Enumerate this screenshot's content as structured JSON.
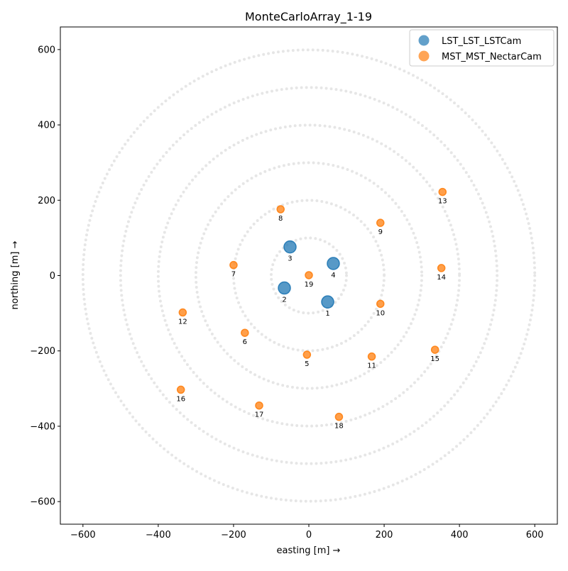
{
  "chart_data": {
    "type": "scatter",
    "title": "MonteCarloArray_1-19",
    "xlabel": "easting [m] →",
    "ylabel": "northing [m] →",
    "xlim": [
      -660,
      660
    ],
    "ylim": [
      -660,
      660
    ],
    "xticks": [
      -600,
      -400,
      -200,
      0,
      200,
      400,
      600
    ],
    "yticks": [
      -600,
      -400,
      -200,
      0,
      200,
      400,
      600
    ],
    "tick_labels": [
      "−600",
      "−400",
      "−200",
      "0",
      "200",
      "400",
      "600"
    ],
    "grid_circles_radius": [
      100,
      200,
      300,
      400,
      500,
      600
    ],
    "legend_position": "top-right",
    "colors": {
      "lst": "#1f77b4",
      "mst": "#ff7f0e",
      "grid": "#e6e6e6"
    },
    "series": [
      {
        "name": "LST_LST_LSTCam",
        "points": [
          {
            "id": "1",
            "x": 50,
            "y": -70
          },
          {
            "id": "2",
            "x": -65,
            "y": -33
          },
          {
            "id": "3",
            "x": -50,
            "y": 76
          },
          {
            "id": "4",
            "x": 65,
            "y": 32
          }
        ]
      },
      {
        "name": "MST_MST_NectarCam",
        "points": [
          {
            "id": "5",
            "x": -5,
            "y": -210
          },
          {
            "id": "6",
            "x": -170,
            "y": -152
          },
          {
            "id": "7",
            "x": -200,
            "y": 28
          },
          {
            "id": "8",
            "x": -75,
            "y": 176
          },
          {
            "id": "9",
            "x": 190,
            "y": 140
          },
          {
            "id": "10",
            "x": 190,
            "y": -75
          },
          {
            "id": "11",
            "x": 167,
            "y": -215
          },
          {
            "id": "12",
            "x": -335,
            "y": -98
          },
          {
            "id": "13",
            "x": 355,
            "y": 222
          },
          {
            "id": "14",
            "x": 352,
            "y": 20
          },
          {
            "id": "15",
            "x": 335,
            "y": -197
          },
          {
            "id": "16",
            "x": -340,
            "y": -303
          },
          {
            "id": "17",
            "x": -132,
            "y": -345
          },
          {
            "id": "18",
            "x": 80,
            "y": -375
          },
          {
            "id": "19",
            "x": 0,
            "y": 1
          }
        ]
      }
    ]
  }
}
